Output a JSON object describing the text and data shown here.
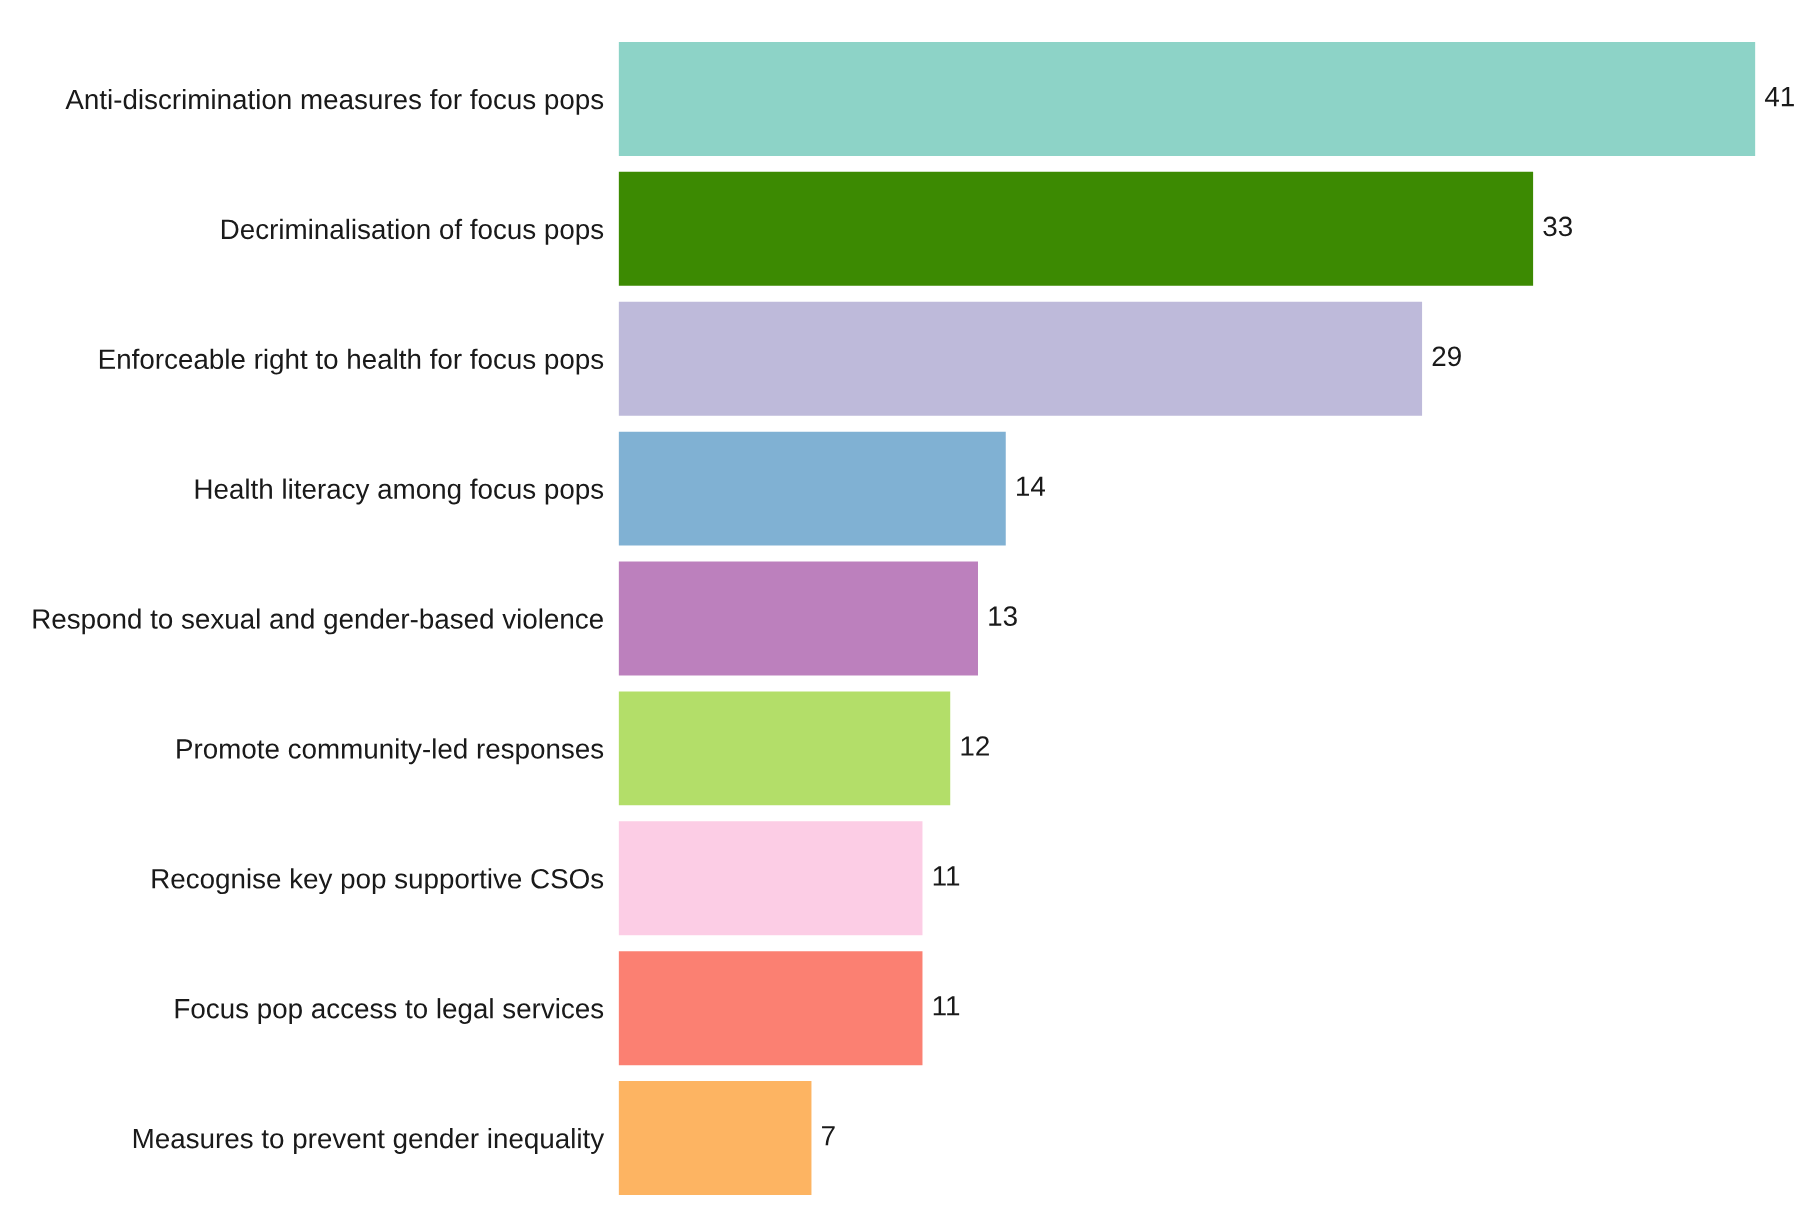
{
  "chart_data": {
    "type": "bar",
    "orientation": "horizontal",
    "categories": [
      "Anti-discrimination measures for focus pops",
      "Decriminalisation of focus pops",
      "Enforceable right to health for focus pops",
      "Health literacy among focus pops",
      "Respond to sexual and gender-based violence",
      "Promote community-led responses",
      "Recognise key pop supportive CSOs",
      "Focus pop access to legal services",
      "Measures to prevent gender inequality"
    ],
    "values": [
      41,
      33,
      29,
      14,
      13,
      12,
      11,
      11,
      7
    ],
    "colors": [
      "#8dd3c7",
      "#3c8a02",
      "#bebada",
      "#80b1d3",
      "#bc80bd",
      "#b3de69",
      "#fccde5",
      "#fb8072",
      "#fdb462"
    ],
    "data_labels": true,
    "grid": false
  }
}
